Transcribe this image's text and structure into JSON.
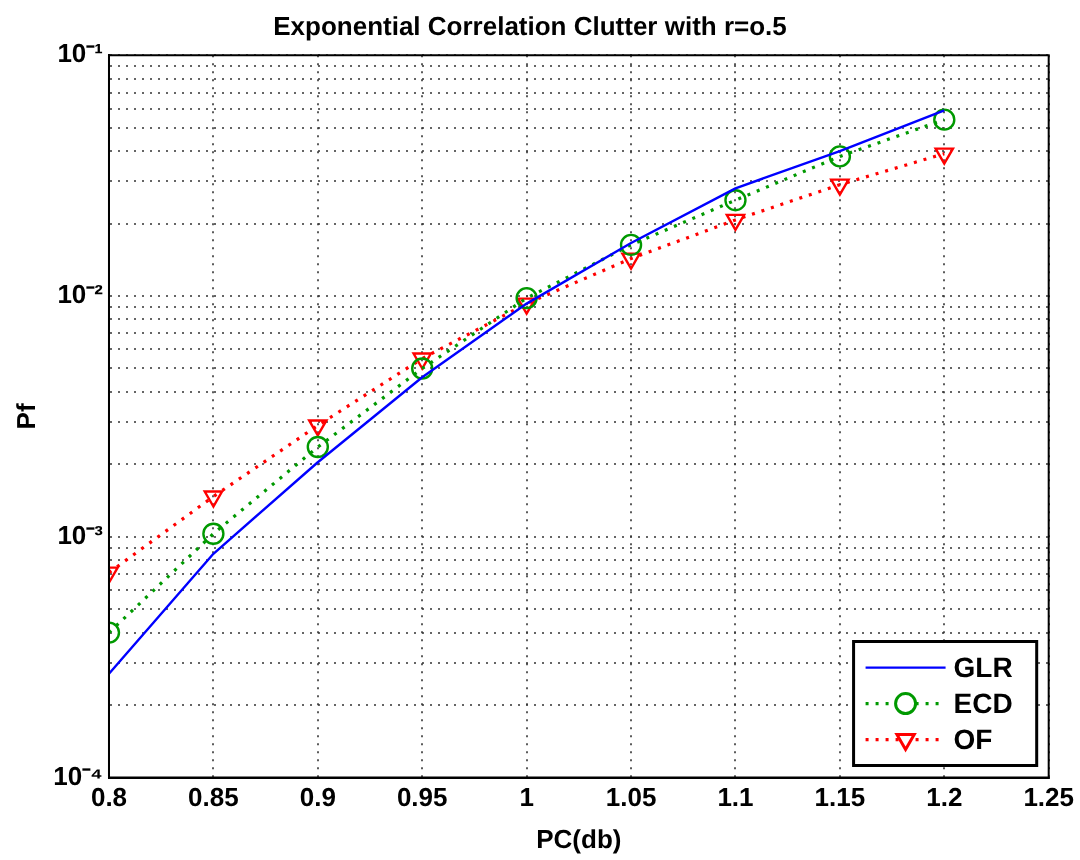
{
  "chart_data": {
    "type": "line",
    "title": "Exponential Correlation Clutter with r=o.5",
    "xlabel": "PC(db)",
    "ylabel": "Pf",
    "x": [
      0.8,
      0.85,
      0.9,
      0.95,
      1.0,
      1.05,
      1.1,
      1.15,
      1.2
    ],
    "series": [
      {
        "name": "GLR",
        "color": "#0000ff",
        "marker": "none",
        "line_style": "solid",
        "values": [
          0.00027,
          0.00085,
          0.00204,
          0.0046,
          0.0093,
          0.0166,
          0.028,
          0.04,
          0.059
        ]
      },
      {
        "name": "ECD",
        "color": "#009900",
        "marker": "circle",
        "line_style": "dotted",
        "values": [
          0.0004,
          0.00103,
          0.00236,
          0.005,
          0.0098,
          0.0163,
          0.025,
          0.038,
          0.054
        ]
      },
      {
        "name": "OF",
        "color": "#ff0000",
        "marker": "triangle",
        "line_style": "dotted",
        "values": [
          0.00071,
          0.00147,
          0.0029,
          0.0055,
          0.0093,
          0.0143,
          0.0207,
          0.029,
          0.039
        ]
      }
    ],
    "log": "y",
    "xlim": [
      0.8,
      1.25
    ],
    "xticks": [
      0.8,
      0.85,
      0.9,
      0.95,
      1,
      1.05,
      1.1,
      1.15,
      1.2,
      1.25
    ],
    "ylim": [
      0.0001,
      0.1
    ],
    "yticks": [
      {
        "value": 0.0001,
        "label": "10⁻⁴"
      },
      {
        "value": 0.0002,
        "label": null
      },
      {
        "value": 0.0003,
        "label": null
      },
      {
        "value": 0.0004,
        "label": null
      },
      {
        "value": 0.0005,
        "label": null
      },
      {
        "value": 0.0006,
        "label": null
      },
      {
        "value": 0.0007,
        "label": null
      },
      {
        "value": 0.0008,
        "label": null
      },
      {
        "value": 0.0009,
        "label": null
      },
      {
        "value": 0.001,
        "label": "10⁻³"
      },
      {
        "value": 0.002,
        "label": null
      },
      {
        "value": 0.003,
        "label": null
      },
      {
        "value": 0.004,
        "label": null
      },
      {
        "value": 0.005,
        "label": null
      },
      {
        "value": 0.006,
        "label": null
      },
      {
        "value": 0.007,
        "label": null
      },
      {
        "value": 0.008,
        "label": null
      },
      {
        "value": 0.009,
        "label": null
      },
      {
        "value": 0.01,
        "label": "10⁻²"
      },
      {
        "value": 0.02,
        "label": null
      },
      {
        "value": 0.03,
        "label": null
      },
      {
        "value": 0.04,
        "label": null
      },
      {
        "value": 0.05,
        "label": null
      },
      {
        "value": 0.06,
        "label": null
      },
      {
        "value": 0.07,
        "label": null
      },
      {
        "value": 0.08,
        "label": null
      },
      {
        "value": 0.09,
        "label": null
      },
      {
        "value": 0.1,
        "label": "10⁻¹"
      }
    ],
    "grid": true,
    "legend": "bottom right"
  }
}
